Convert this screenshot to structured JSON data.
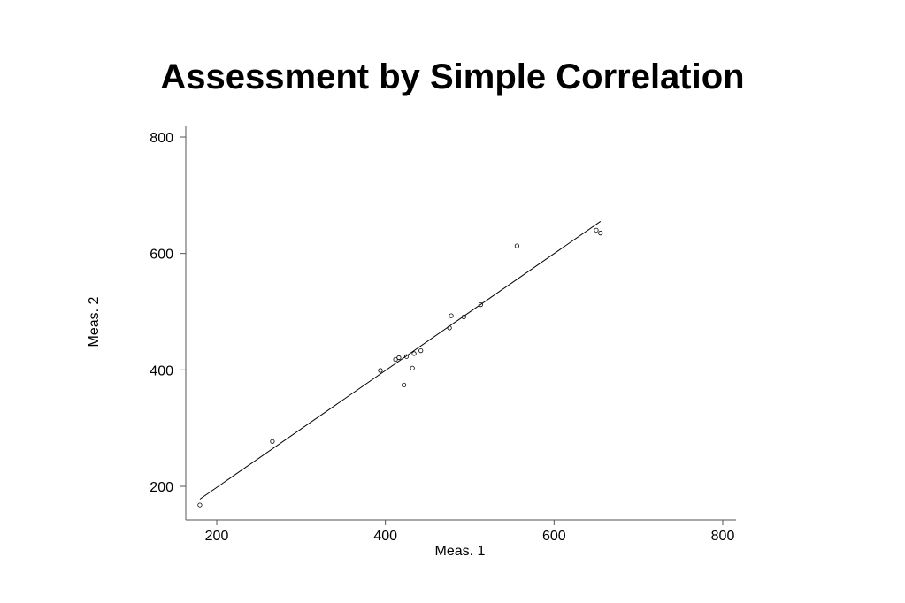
{
  "chart_data": {
    "type": "scatter",
    "title": "Assessment by Simple Correlation",
    "xlabel": "Meas. 1",
    "ylabel": "Meas. 2",
    "xlim": [
      162,
      815
    ],
    "ylim": [
      145,
      822
    ],
    "x_ticks": [
      200,
      400,
      600,
      800
    ],
    "y_ticks": [
      200,
      400,
      600,
      800
    ],
    "grid": false,
    "series": [
      {
        "points": [
          [
            180,
            168
          ],
          [
            266,
            277
          ],
          [
            394,
            399
          ],
          [
            412,
            418
          ],
          [
            416,
            421
          ],
          [
            422,
            374
          ],
          [
            425,
            423
          ],
          [
            432,
            403
          ],
          [
            434,
            428
          ],
          [
            442,
            433
          ],
          [
            476,
            472
          ],
          [
            478,
            493
          ],
          [
            493,
            491
          ],
          [
            513,
            512
          ],
          [
            556,
            613
          ],
          [
            650,
            640
          ],
          [
            655,
            635
          ]
        ]
      }
    ],
    "fit_line": {
      "x": [
        180,
        655
      ],
      "y": [
        178,
        655
      ]
    }
  }
}
